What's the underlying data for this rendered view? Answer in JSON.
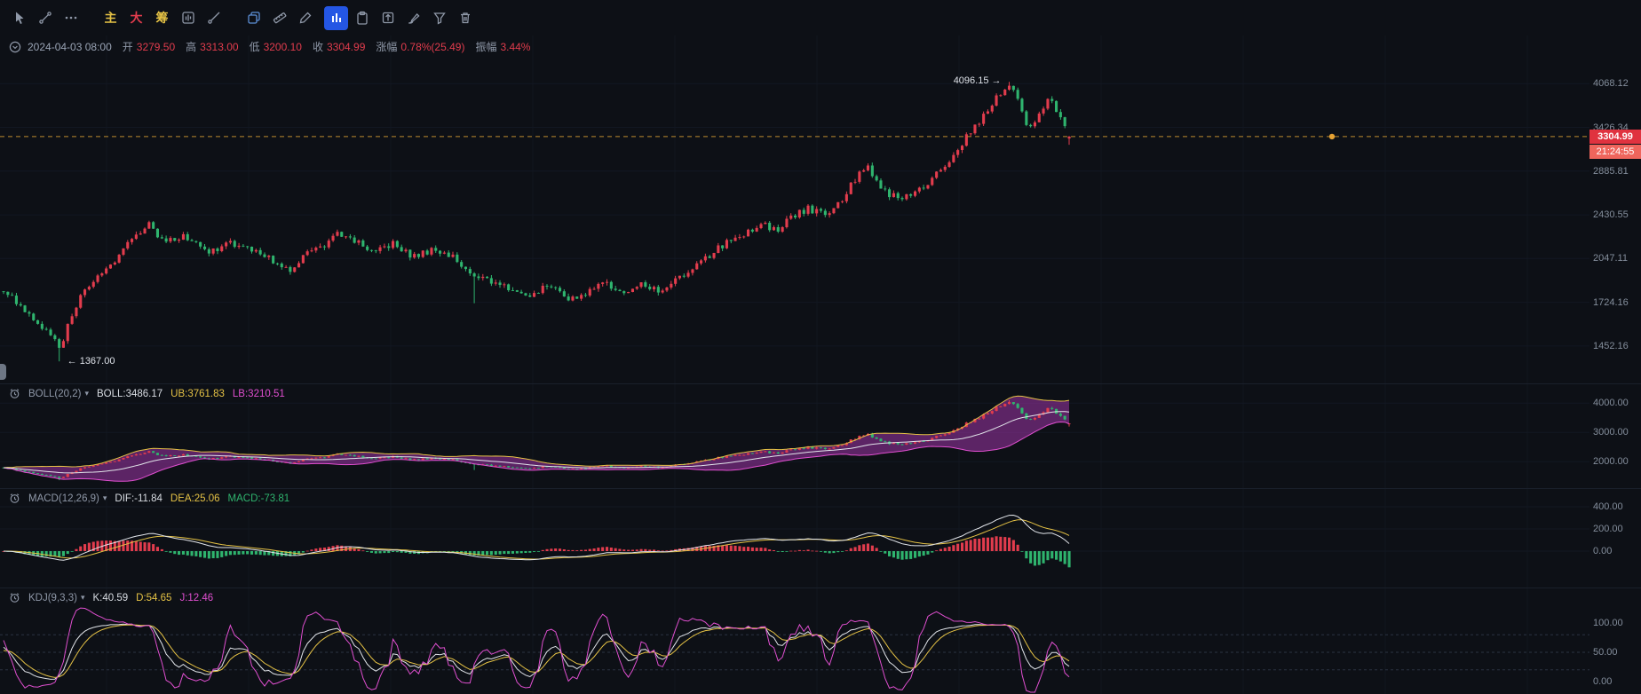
{
  "colors": {
    "background": "#0d1016",
    "up": "#e23c4d",
    "down": "#2fb46e",
    "axis_text": "#848e9c",
    "yellow": "#e5c245",
    "magenta": "#e04fd0",
    "white_line": "#e2e5ea",
    "active_tool_bg": "#2456e4",
    "compare_icon_blue": "#5c8fd6",
    "price_line": "#bd8b2f",
    "price_dot": "#e6a233",
    "price_badge_bg": "#e0323f",
    "countdown_badge_bg": "#ef655c",
    "boll_band_fill": "rgba(158,52,168,0.55)"
  },
  "toolbar": {
    "icons": [
      "cursor-icon",
      "trendline-icon",
      "more-icon",
      "chart-box-icon",
      "ray-line-icon",
      "compare-icon",
      "ruler-icon",
      "pen-icon",
      "bar-chart-icon",
      "clipboard-icon",
      "export-icon",
      "brush-icon",
      "filter-icon",
      "trash-icon"
    ],
    "char_buttons": [
      {
        "label": "主",
        "color": "#e5c245"
      },
      {
        "label": "大",
        "color": "#e23c4d"
      },
      {
        "label": "筹",
        "color": "#e5c245"
      }
    ],
    "active_tool": "bar-chart-icon"
  },
  "info_bar": {
    "timestamp": "2024-04-03 08:00",
    "fields": [
      {
        "label": "开",
        "value": "3279.50"
      },
      {
        "label": "高",
        "value": "3313.00"
      },
      {
        "label": "低",
        "value": "3200.10"
      },
      {
        "label": "收",
        "value": "3304.99"
      },
      {
        "label": "涨幅",
        "value": "0.78%(25.49)"
      },
      {
        "label": "振幅",
        "value": "3.44%"
      }
    ]
  },
  "main_chart": {
    "y_axis": [
      "4068.12",
      "3426.34",
      "2885.81",
      "2430.55",
      "2047.11",
      "1724.16",
      "1452.16"
    ],
    "high_annotation": "4096.15 →",
    "low_annotation": "← 1367.00",
    "last_price": "3304.99",
    "countdown": "21:24:55"
  },
  "indicators": {
    "boll": {
      "name": "BOLL(20,2)",
      "values": [
        {
          "text": "BOLL:3486.17",
          "color": "white"
        },
        {
          "text": "UB:3761.83",
          "color": "yellow"
        },
        {
          "text": "LB:3210.51",
          "color": "magenta"
        }
      ],
      "axis": [
        "4000.00",
        "3000.00",
        "2000.00"
      ]
    },
    "macd": {
      "name": "MACD(12,26,9)",
      "values": [
        {
          "text": "DIF:-11.84",
          "color": "white"
        },
        {
          "text": "DEA:25.06",
          "color": "yellow"
        },
        {
          "text": "MACD:-73.81",
          "color": "green"
        }
      ],
      "axis": [
        "400.00",
        "200.00",
        "0.00"
      ]
    },
    "kdj": {
      "name": "KDJ(9,3,3)",
      "values": [
        {
          "text": "K:40.59",
          "color": "white"
        },
        {
          "text": "D:54.65",
          "color": "yellow"
        },
        {
          "text": "J:12.46",
          "color": "magenta"
        }
      ],
      "axis": [
        "100.00",
        "50.00",
        "0.00"
      ]
    }
  },
  "chart_data": {
    "type": "candlestick",
    "scale": "log",
    "candle_count": 250,
    "visible_price_range": [
      1350,
      4350
    ],
    "keypoints": [
      [
        0.0,
        1800
      ],
      [
        0.02,
        1680
      ],
      [
        0.045,
        1520
      ],
      [
        0.053,
        1430
      ],
      [
        0.062,
        1600
      ],
      [
        0.075,
        1800
      ],
      [
        0.095,
        1950
      ],
      [
        0.115,
        2150
      ],
      [
        0.135,
        2360
      ],
      [
        0.15,
        2180
      ],
      [
        0.17,
        2240
      ],
      [
        0.19,
        2090
      ],
      [
        0.21,
        2170
      ],
      [
        0.23,
        2130
      ],
      [
        0.25,
        2040
      ],
      [
        0.268,
        1960
      ],
      [
        0.285,
        2080
      ],
      [
        0.3,
        2150
      ],
      [
        0.315,
        2260
      ],
      [
        0.33,
        2190
      ],
      [
        0.348,
        2100
      ],
      [
        0.365,
        2170
      ],
      [
        0.385,
        2060
      ],
      [
        0.405,
        2120
      ],
      [
        0.425,
        2040
      ],
      [
        0.44,
        1900
      ],
      [
        0.455,
        1880
      ],
      [
        0.475,
        1820
      ],
      [
        0.495,
        1780
      ],
      [
        0.515,
        1845
      ],
      [
        0.53,
        1745
      ],
      [
        0.55,
        1805
      ],
      [
        0.565,
        1865
      ],
      [
        0.58,
        1775
      ],
      [
        0.6,
        1850
      ],
      [
        0.615,
        1790
      ],
      [
        0.632,
        1880
      ],
      [
        0.65,
        1985
      ],
      [
        0.665,
        2090
      ],
      [
        0.68,
        2190
      ],
      [
        0.695,
        2265
      ],
      [
        0.71,
        2345
      ],
      [
        0.725,
        2290
      ],
      [
        0.74,
        2400
      ],
      [
        0.755,
        2495
      ],
      [
        0.77,
        2430
      ],
      [
        0.785,
        2545
      ],
      [
        0.8,
        2810
      ],
      [
        0.81,
        2935
      ],
      [
        0.825,
        2680
      ],
      [
        0.84,
        2580
      ],
      [
        0.855,
        2645
      ],
      [
        0.87,
        2770
      ],
      [
        0.885,
        2985
      ],
      [
        0.9,
        3230
      ],
      [
        0.915,
        3490
      ],
      [
        0.93,
        3800
      ],
      [
        0.942,
        4070
      ],
      [
        0.95,
        3930
      ],
      [
        0.96,
        3500
      ],
      [
        0.966,
        3390
      ],
      [
        0.974,
        3700
      ],
      [
        0.982,
        3830
      ],
      [
        0.99,
        3620
      ],
      [
        1.0,
        3305
      ]
    ],
    "specials": {
      "session_low": {
        "t": 0.053,
        "price": 1367.0
      },
      "mid_drop_wick": {
        "t": 0.442
      },
      "session_high": {
        "t": 0.942,
        "price": 4096.15
      },
      "last_candle": {
        "open": 3279.5,
        "high": 3313.0,
        "low": 3200.1,
        "close": 3304.99
      }
    },
    "overlays": [
      "BOLL(20,2)",
      "MACD(12,26,9)",
      "KDJ(9,3,3)"
    ]
  }
}
